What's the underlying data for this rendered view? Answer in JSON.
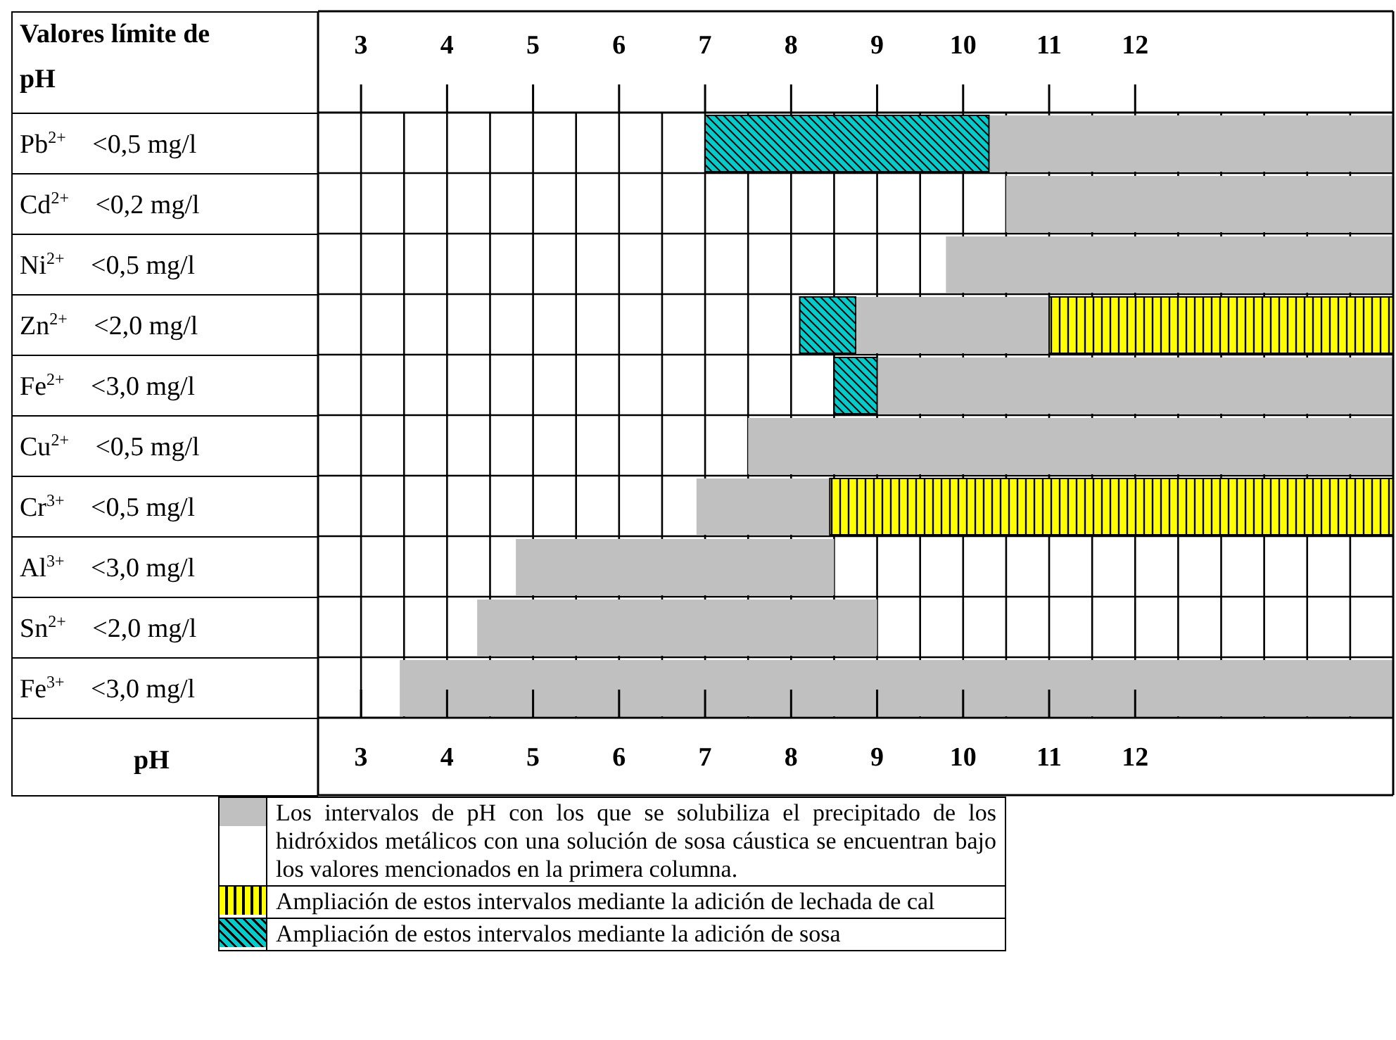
{
  "chart_data": {
    "type": "bar",
    "orientation": "horizontal",
    "title": "Valores límite de pH",
    "annotations": [
      "pH"
    ],
    "categories": [
      "Pb$^{2+}$ <0,5 mg/l",
      "Cd$^{2+}$ <0,2 mg/l",
      "Ni$^{2+}$ <0,5 mg/l",
      "Zn$^{2+}$ <2,0 mg/l",
      "Fe$^{2+}$ <3,0 mg/l",
      "Cu$^{2+}$ <0,5 mg/l",
      "Cr$^{3+}$ <0,5 mg/l",
      "Al$^{3+}$ <3,0 mg/l",
      "Sn$^{2+}$ <2,0 mg/l",
      "Fe$^{3+}$ <3,0 mg/l"
    ],
    "series": [
      {
        "name": "Los intervalos de pH con los que se solubiliza el precipitado de los hidróxidos metálicos con una solución de sosa cáustica se encuentran bajo los valores mencionados en la primera columna.",
        "color": "#c0c0c0",
        "base": [
          10.3,
          10.5,
          9.8,
          8.75,
          9,
          7.5,
          6.9,
          4.8,
          4.35,
          3.45
        ],
        "values": [
          4.7,
          4.5,
          5.2,
          2.25,
          6,
          7.5,
          1.55,
          3.7,
          4.65,
          11.55
        ]
      },
      {
        "name": "Ampliación de estos intervalos mediante la adición de lechada de cal",
        "color": "#ffff00",
        "base": [
          null,
          null,
          null,
          11,
          null,
          null,
          8.45,
          null,
          null,
          null
        ],
        "values": [
          null,
          null,
          null,
          4,
          null,
          null,
          6.55,
          null,
          null,
          null
        ]
      },
      {
        "name": "Ampliación de estos intervalos mediante la adición de sosa",
        "color": "#00cccc",
        "base": [
          7,
          null,
          null,
          8.1,
          8.5,
          null,
          null,
          null,
          null,
          null
        ],
        "values": [
          3.3,
          null,
          null,
          0.65,
          0.5,
          null,
          null,
          null,
          null,
          null
        ]
      }
    ],
    "xlim": [
      2.5,
      15
    ],
    "xticks": [
      3,
      4,
      5,
      6,
      7,
      8,
      9,
      10,
      11,
      12
    ],
    "x2lim": [
      2.5,
      15
    ],
    "x2ticks": [
      3,
      4,
      5,
      6,
      7,
      8,
      9,
      10,
      11,
      12
    ],
    "grid": true,
    "legend": "bottom"
  }
}
